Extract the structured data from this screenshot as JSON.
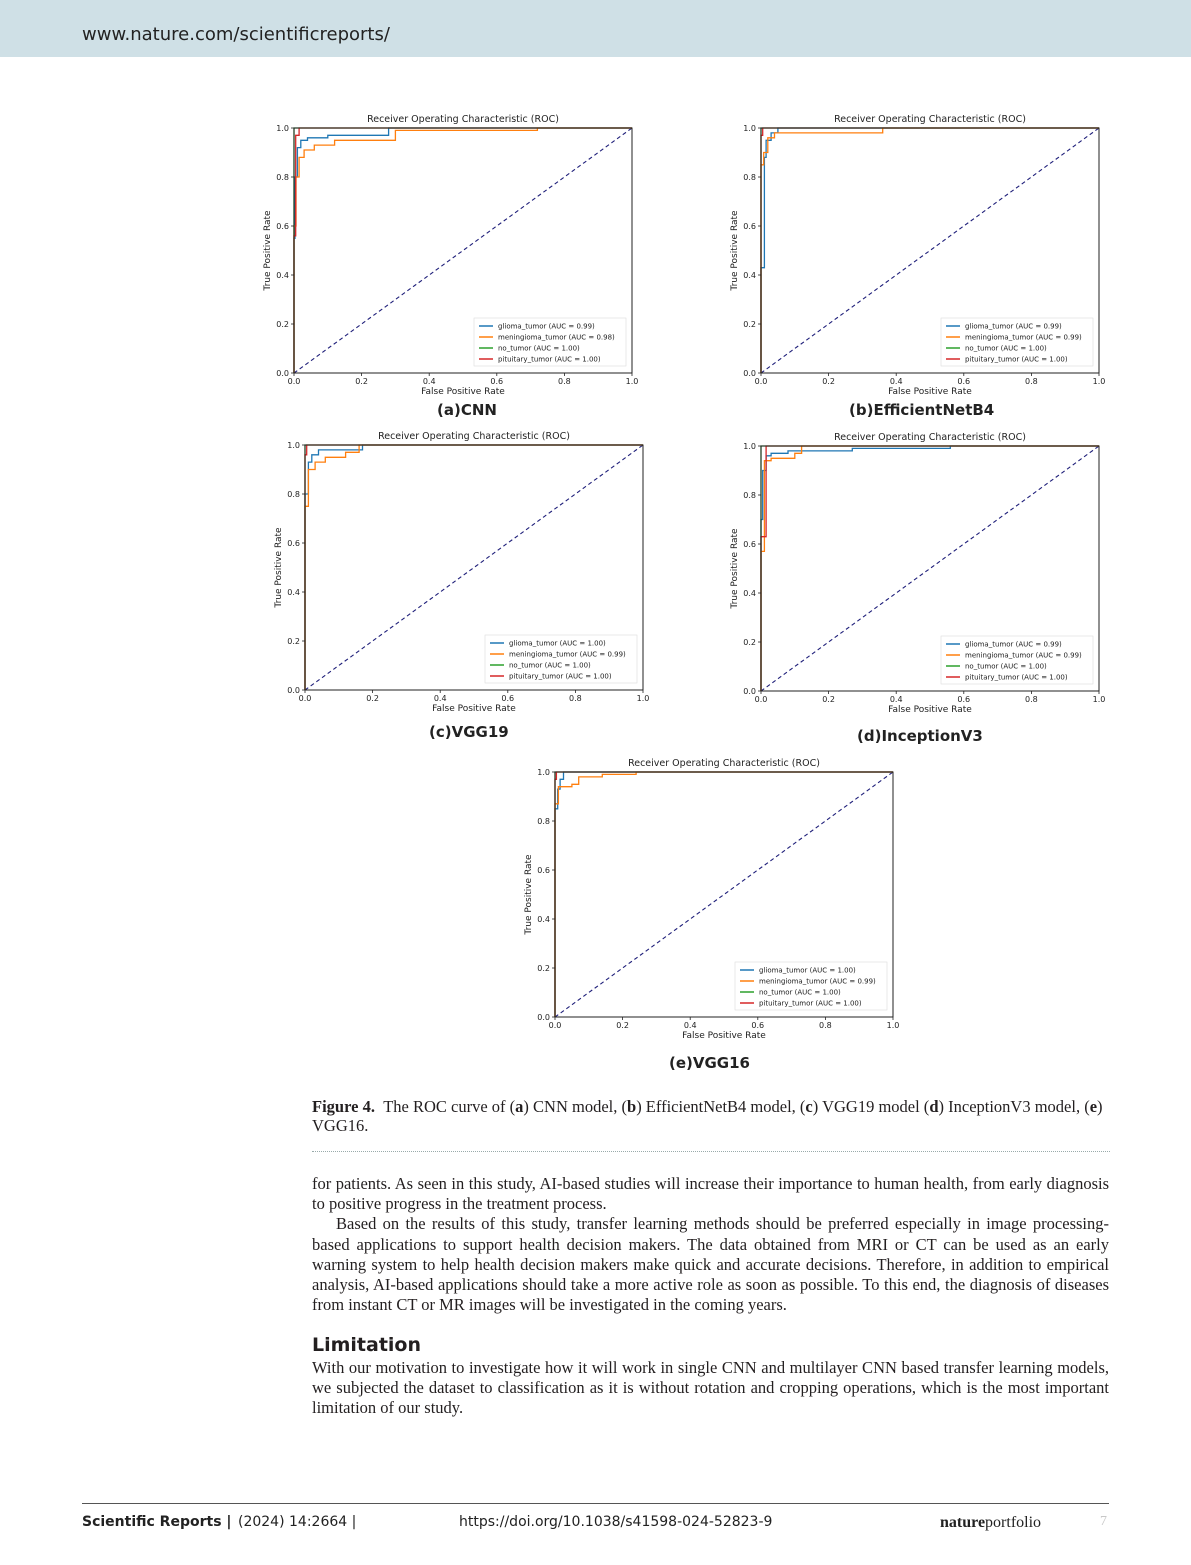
{
  "header": {
    "url": "www.nature.com/scientificreports/"
  },
  "charts_common": {
    "title": "Receiver Operating Characteristic (ROC)",
    "xlabel": "False Positive Rate",
    "ylabel": "True Positive Rate",
    "ticks": [
      "0.0",
      "0.2",
      "0.4",
      "0.6",
      "0.8",
      "1.0"
    ],
    "colors": {
      "glioma_tumor": "#1f77b4",
      "meningioma_tumor": "#ff7f0e",
      "no_tumor": "#2ca02c",
      "pituitary_tumor": "#d62728",
      "diagonal": "#1f1f7a"
    }
  },
  "panels": [
    {
      "label": "(a)CNN",
      "legend": [
        "glioma_tumor (AUC = 0.99)",
        "meningioma_tumor (AUC = 0.98)",
        "no_tumor (AUC = 1.00)",
        "pituitary_tumor (AUC = 1.00)"
      ],
      "chart_data": {
        "type": "line",
        "xlim": [
          0,
          1
        ],
        "ylim": [
          0,
          1
        ],
        "legend_position": "lower-right",
        "series": [
          {
            "name": "glioma_tumor",
            "x": [
              0,
              0,
              0.003,
              0.003,
              0.01,
              0.01,
              0.02,
              0.02,
              0.04,
              0.04,
              0.1,
              0.1,
              0.28,
              0.28,
              1
            ],
            "y": [
              0,
              0.55,
              0.55,
              0.8,
              0.8,
              0.92,
              0.92,
              0.95,
              0.95,
              0.96,
              0.96,
              0.97,
              0.97,
              1,
              1
            ]
          },
          {
            "name": "meningioma_tumor",
            "x": [
              0,
              0,
              0.006,
              0.006,
              0.015,
              0.015,
              0.03,
              0.03,
              0.06,
              0.06,
              0.12,
              0.12,
              0.3,
              0.3,
              0.72,
              0.72,
              1
            ],
            "y": [
              0,
              0.6,
              0.6,
              0.8,
              0.8,
              0.88,
              0.88,
              0.91,
              0.91,
              0.93,
              0.93,
              0.95,
              0.95,
              0.99,
              0.99,
              1,
              1
            ]
          },
          {
            "name": "no_tumor",
            "x": [
              0,
              0,
              1
            ],
            "y": [
              0,
              1,
              1
            ]
          },
          {
            "name": "pituitary_tumor",
            "x": [
              0,
              0,
              0.005,
              0.005,
              0.015,
              0.015,
              1
            ],
            "y": [
              0,
              0.56,
              0.56,
              0.97,
              0.97,
              1,
              1
            ]
          }
        ]
      }
    },
    {
      "label": "(b)EfficientNetB4",
      "legend": [
        "glioma_tumor (AUC = 0.99)",
        "meningioma_tumor (AUC = 0.99)",
        "no_tumor (AUC = 1.00)",
        "pituitary_tumor (AUC = 1.00)"
      ],
      "chart_data": {
        "type": "line",
        "xlim": [
          0,
          1
        ],
        "ylim": [
          0,
          1
        ],
        "legend_position": "lower-right",
        "series": [
          {
            "name": "glioma_tumor",
            "x": [
              0,
              0,
              0.01,
              0.01,
              0.015,
              0.015,
              0.03,
              0.03,
              0.05,
              0.05,
              1
            ],
            "y": [
              0,
              0.43,
              0.43,
              0.88,
              0.88,
              0.95,
              0.95,
              0.98,
              0.98,
              1,
              1
            ]
          },
          {
            "name": "meningioma_tumor",
            "x": [
              0,
              0,
              0.008,
              0.008,
              0.02,
              0.02,
              0.04,
              0.04,
              0.36,
              0.36,
              1
            ],
            "y": [
              0,
              0.85,
              0.85,
              0.9,
              0.9,
              0.96,
              0.96,
              0.98,
              0.98,
              1,
              1
            ]
          },
          {
            "name": "no_tumor",
            "x": [
              0,
              0,
              1
            ],
            "y": [
              0,
              1,
              1
            ]
          },
          {
            "name": "pituitary_tumor",
            "x": [
              0,
              0,
              0.005,
              0.005,
              1
            ],
            "y": [
              0,
              0.97,
              0.97,
              1,
              1
            ]
          }
        ]
      }
    },
    {
      "label": "(c)VGG19",
      "legend": [
        "glioma_tumor (AUC = 1.00)",
        "meningioma_tumor (AUC = 0.99)",
        "no_tumor (AUC = 1.00)",
        "pituitary_tumor (AUC = 1.00)"
      ],
      "chart_data": {
        "type": "line",
        "xlim": [
          0,
          1
        ],
        "ylim": [
          0,
          1
        ],
        "legend_position": "lower-right",
        "series": [
          {
            "name": "glioma_tumor",
            "x": [
              0,
              0,
              0.01,
              0.01,
              0.02,
              0.02,
              0.04,
              0.04,
              0.17,
              0.17,
              1
            ],
            "y": [
              0,
              0.8,
              0.8,
              0.93,
              0.93,
              0.96,
              0.96,
              0.98,
              0.98,
              1,
              1
            ]
          },
          {
            "name": "meningioma_tumor",
            "x": [
              0,
              0,
              0.01,
              0.01,
              0.03,
              0.03,
              0.06,
              0.06,
              0.12,
              0.12,
              0.16,
              0.16,
              1
            ],
            "y": [
              0,
              0.75,
              0.75,
              0.9,
              0.9,
              0.93,
              0.93,
              0.95,
              0.95,
              0.97,
              0.97,
              1,
              1
            ]
          },
          {
            "name": "no_tumor",
            "x": [
              0,
              0,
              1
            ],
            "y": [
              0,
              1,
              1
            ]
          },
          {
            "name": "pituitary_tumor",
            "x": [
              0,
              0,
              0.005,
              0.005,
              1
            ],
            "y": [
              0,
              0.96,
              0.96,
              1,
              1
            ]
          }
        ]
      }
    },
    {
      "label": "(d)InceptionV3",
      "legend": [
        "glioma_tumor (AUC = 0.99)",
        "meningioma_tumor (AUC = 0.99)",
        "no_tumor (AUC = 1.00)",
        "pituitary_tumor (AUC = 1.00)"
      ],
      "chart_data": {
        "type": "line",
        "xlim": [
          0,
          1
        ],
        "ylim": [
          0,
          1
        ],
        "legend_position": "lower-right",
        "series": [
          {
            "name": "glioma_tumor",
            "x": [
              0,
              0,
              0.005,
              0.005,
              0.015,
              0.015,
              0.03,
              0.03,
              0.08,
              0.08,
              0.27,
              0.27,
              0.56,
              0.56,
              1
            ],
            "y": [
              0,
              0.7,
              0.7,
              0.9,
              0.9,
              0.96,
              0.96,
              0.97,
              0.97,
              0.98,
              0.98,
              0.99,
              0.99,
              1,
              1
            ]
          },
          {
            "name": "meningioma_tumor",
            "x": [
              0,
              0,
              0.01,
              0.01,
              0.03,
              0.03,
              0.1,
              0.1,
              0.12,
              0.12,
              1
            ],
            "y": [
              0,
              0.57,
              0.57,
              0.94,
              0.94,
              0.95,
              0.95,
              0.97,
              0.97,
              1,
              1
            ]
          },
          {
            "name": "no_tumor",
            "x": [
              0,
              0,
              1
            ],
            "y": [
              0,
              1,
              1
            ]
          },
          {
            "name": "pituitary_tumor",
            "x": [
              0,
              0,
              0.015,
              0.015,
              1
            ],
            "y": [
              0,
              0.63,
              0.63,
              1,
              1
            ]
          }
        ]
      }
    },
    {
      "label": "(e)VGG16",
      "legend": [
        "glioma_tumor (AUC = 1.00)",
        "meningioma_tumor (AUC = 0.99)",
        "no_tumor (AUC = 1.00)",
        "pituitary_tumor (AUC = 1.00)"
      ],
      "chart_data": {
        "type": "line",
        "xlim": [
          0,
          1
        ],
        "ylim": [
          0,
          1
        ],
        "legend_position": "lower-right",
        "series": [
          {
            "name": "glioma_tumor",
            "x": [
              0,
              0,
              0.008,
              0.008,
              0.015,
              0.015,
              0.025,
              0.025,
              1
            ],
            "y": [
              0,
              0.85,
              0.85,
              0.93,
              0.93,
              0.97,
              0.97,
              1,
              1
            ]
          },
          {
            "name": "meningioma_tumor",
            "x": [
              0,
              0,
              0.01,
              0.01,
              0.05,
              0.05,
              0.07,
              0.07,
              0.14,
              0.14,
              0.24,
              0.24,
              1
            ],
            "y": [
              0,
              0.87,
              0.87,
              0.94,
              0.94,
              0.95,
              0.95,
              0.98,
              0.98,
              0.99,
              0.99,
              1,
              1
            ]
          },
          {
            "name": "no_tumor",
            "x": [
              0,
              0,
              1
            ],
            "y": [
              0,
              1,
              1
            ]
          },
          {
            "name": "pituitary_tumor",
            "x": [
              0,
              0,
              0.004,
              0.004,
              1
            ],
            "y": [
              0,
              0.97,
              0.97,
              1,
              1
            ]
          }
        ]
      }
    }
  ],
  "caption": {
    "label": "Figure 4.",
    "t1": "The ROC curve of (",
    "k1": "a",
    "t2": ") CNN model, (",
    "k2": "b",
    "t3": ") EfficientNetB4 model, (",
    "k3": "c",
    "t4": ") VGG19 model (",
    "k4": "d",
    "t5": ") InceptionV3 model, (",
    "k5": "e",
    "t6": ") VGG16."
  },
  "body": {
    "para1": "for patients. As seen in this study, AI-based studies will increase their importance to human health, from early diagnosis to positive progress in the treatment process.",
    "para2": "Based on the results of this study, transfer learning methods should be preferred especially in image processing-based applications to support health decision makers. The data obtained from MRI or CT can be used as an early warning system to help health decision makers make quick and accurate decisions. Therefore, in addition to empirical analysis, AI-based applications should take a more active role as soon as possible. To this end, the diagnosis of diseases from instant CT or MR images will be investigated in the coming years.",
    "section_title": "Limitation",
    "para3": "With our motivation to investigate how it will work in single CNN and multilayer CNN based transfer learning models, we subjected the dataset to classification as it is without rotation and cropping operations, which is the most important limitation of our study."
  },
  "footer": {
    "journal": "Scientific Reports |",
    "volume": "(2024) 14:2664 |",
    "doi": "https://doi.org/10.1038/s41598-024-52823-9",
    "publisher_bold": "nature",
    "publisher_rest": "portfolio",
    "page": "7"
  }
}
